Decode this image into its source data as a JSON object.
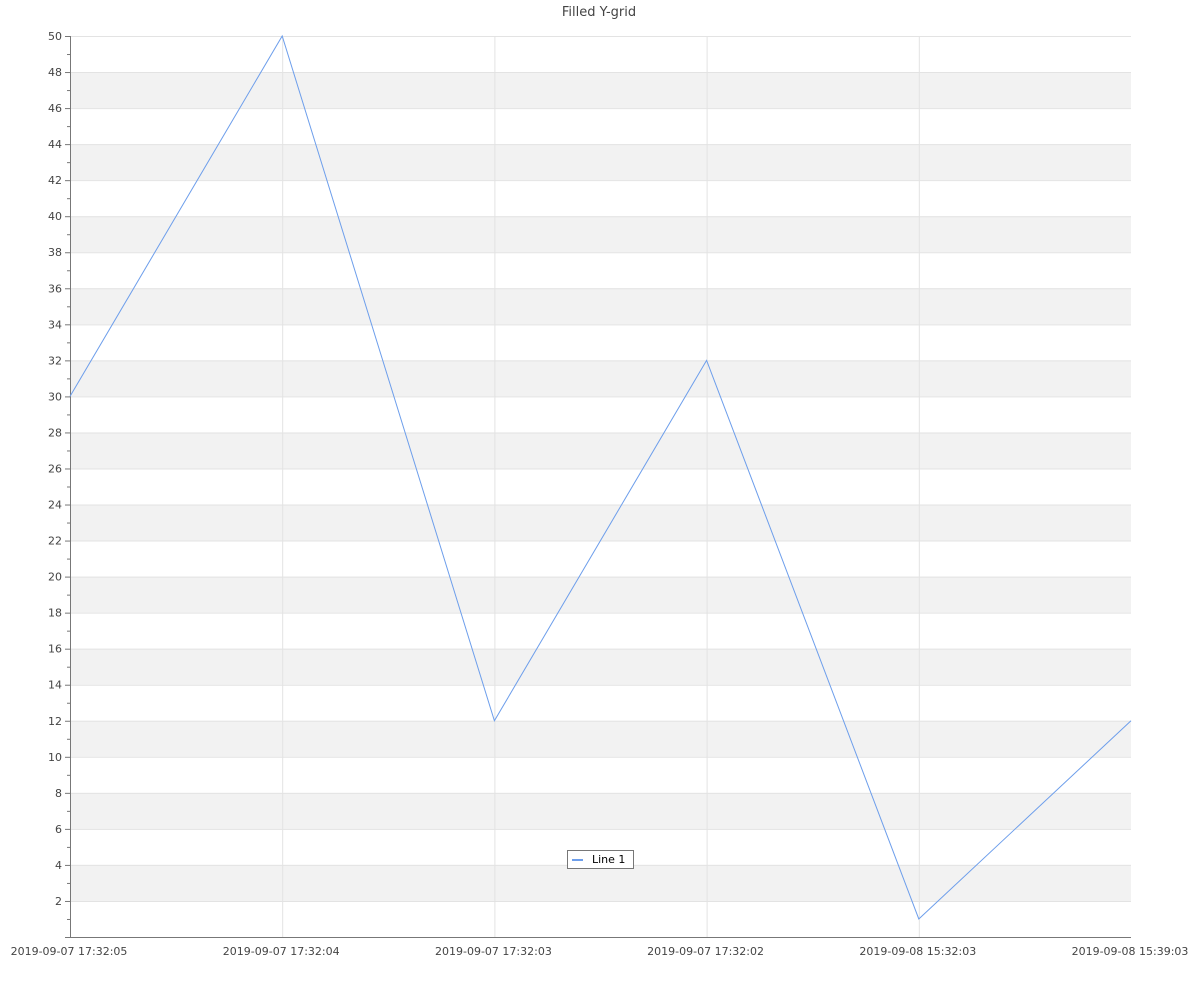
{
  "chart_data": {
    "type": "line",
    "title": "Filled Y-grid",
    "categories": [
      "2019-09-07 17:32:05",
      "2019-09-07 17:32:04",
      "2019-09-07 17:32:03",
      "2019-09-07 17:32:02",
      "2019-09-08 15:32:03",
      "2019-09-08 15:39:03"
    ],
    "series": [
      {
        "name": "Line 1",
        "values": [
          30,
          50,
          12,
          32,
          1,
          12
        ],
        "color": "#6d9eeb"
      }
    ],
    "ylim": [
      0,
      50
    ],
    "yticks": [
      2,
      4,
      6,
      8,
      10,
      12,
      14,
      16,
      18,
      20,
      22,
      24,
      26,
      28,
      30,
      32,
      34,
      36,
      38,
      40,
      42,
      44,
      46,
      48,
      50
    ],
    "grid": true,
    "filled_y_grid_color": "#f2f2f2",
    "legend_placement": "bottom-center"
  }
}
